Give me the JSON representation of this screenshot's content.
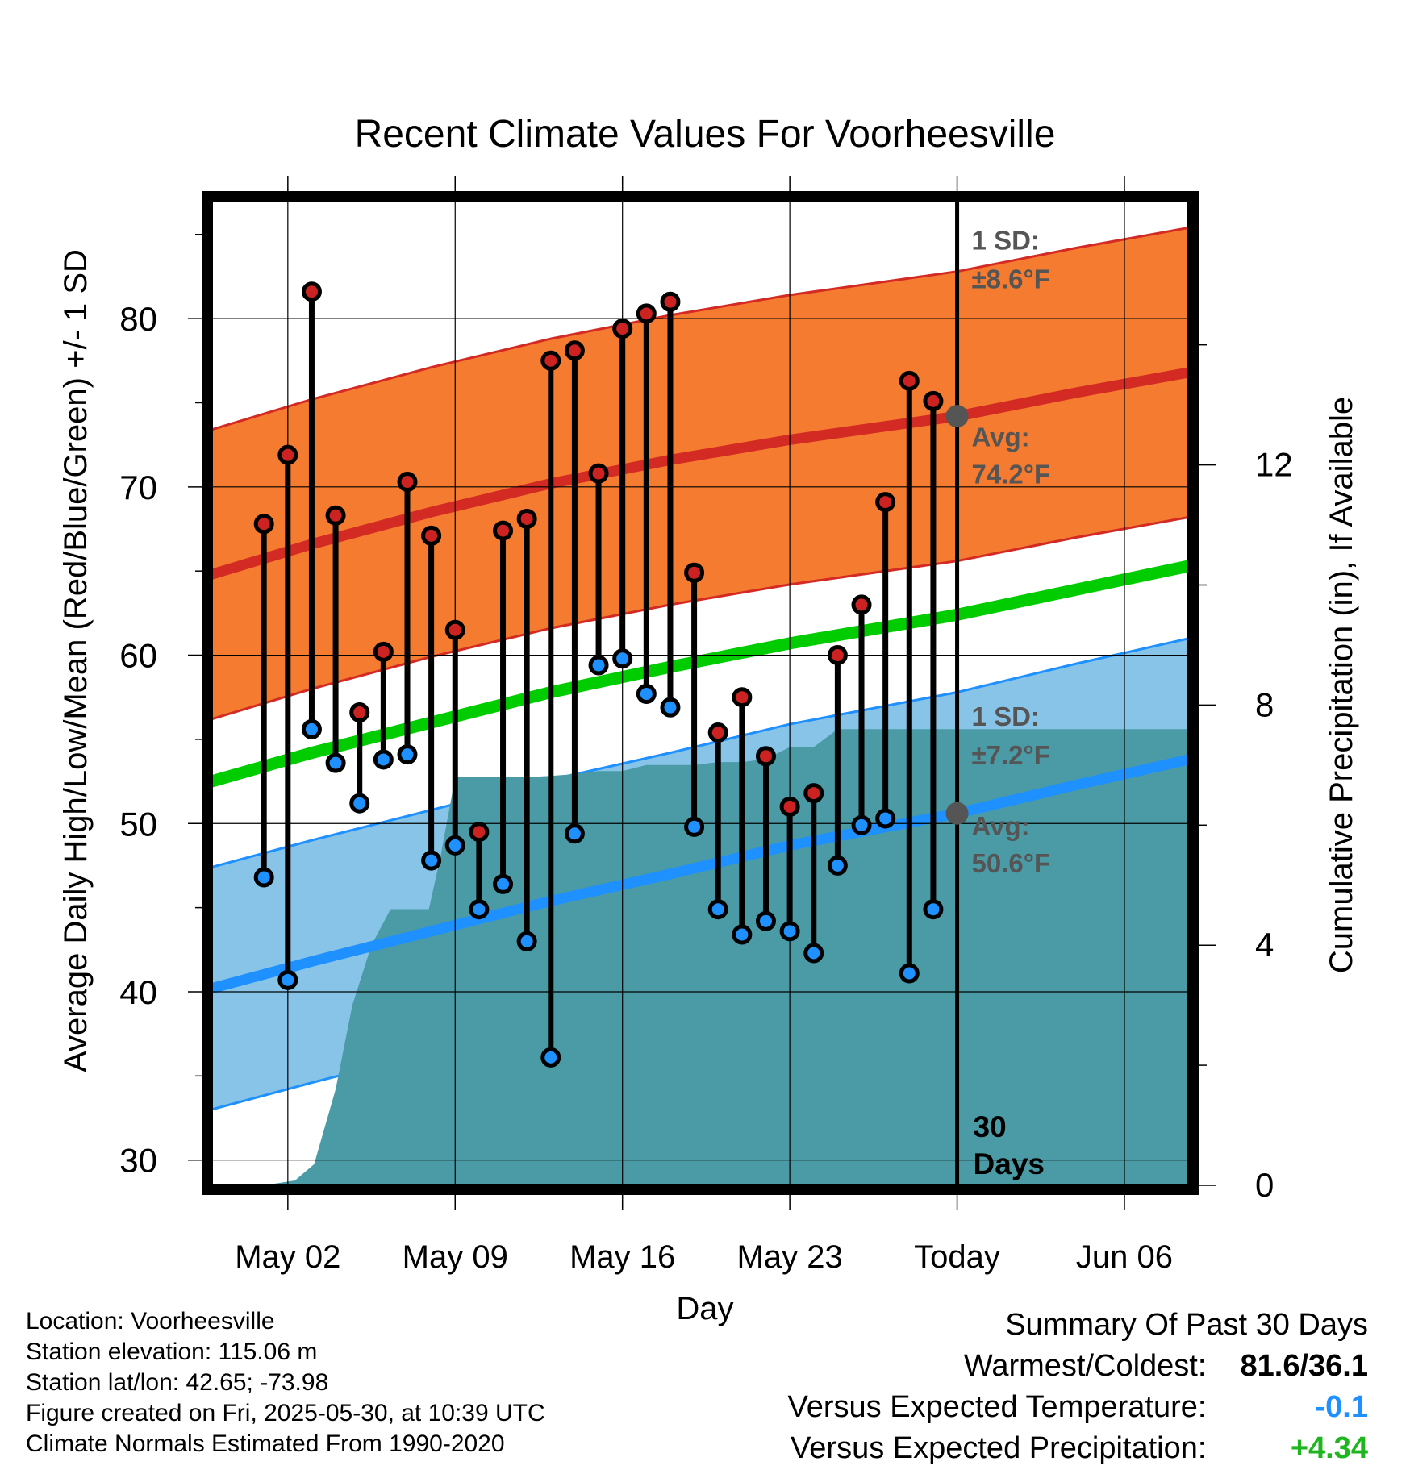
{
  "chart_data": {
    "type": "line",
    "title": "Recent Climate Values For Voorheesville",
    "xlabel": "Day",
    "ylabel": "Average Daily High/Low/Mean (Red/Blue/Green) +/- 1 SD",
    "y2label": "Cumulative Precipitation (in), If Available",
    "x_ticks": [
      {
        "day": 2,
        "label": "May 02"
      },
      {
        "day": 9,
        "label": "May 09"
      },
      {
        "day": 16,
        "label": "May 16"
      },
      {
        "day": 23,
        "label": "May 23"
      },
      {
        "day": 30,
        "label": "Today"
      },
      {
        "day": 37,
        "label": "Jun 06"
      }
    ],
    "xlim": [
      -1.2,
      39.7
    ],
    "ylim": [
      28.5,
      87
    ],
    "y_ticks": [
      30,
      40,
      50,
      60,
      70,
      80
    ],
    "y2lim": [
      0,
      16.4
    ],
    "y2_ticks": [
      0,
      4,
      8,
      12
    ],
    "today_day": 30,
    "today_marker_label": "30 Days",
    "normals": {
      "days": [
        -1.2,
        3,
        8,
        13,
        18,
        23,
        30,
        35,
        39.7
      ],
      "high_mean": [
        64.8,
        66.6,
        68.5,
        70.2,
        71.6,
        72.8,
        74.2,
        75.6,
        76.8
      ],
      "low_mean": [
        40.2,
        41.8,
        43.6,
        45.4,
        47.0,
        48.7,
        50.6,
        52.3,
        53.8
      ],
      "avg_mean": [
        52.5,
        54.2,
        56.0,
        57.8,
        59.3,
        60.7,
        62.4,
        63.9,
        65.3
      ],
      "high_sd": 8.6,
      "low_sd": 7.2
    },
    "series": [
      {
        "name": "High",
        "color": "#cc2222",
        "days": [
          1,
          2,
          3,
          4,
          5,
          6,
          7,
          8,
          9,
          10,
          11,
          12,
          13,
          14,
          15,
          16,
          17,
          18,
          19,
          20,
          21,
          22,
          23,
          24,
          25,
          26,
          27,
          28,
          29
        ],
        "values": [
          67.8,
          71.9,
          81.6,
          68.3,
          56.6,
          60.2,
          70.3,
          67.1,
          61.5,
          49.5,
          67.4,
          68.1,
          77.5,
          78.1,
          70.8,
          79.4,
          80.3,
          81.0,
          64.9,
          55.4,
          57.5,
          54.0,
          51.0,
          51.8,
          60.0,
          63.0,
          69.1,
          76.3,
          75.1
        ]
      },
      {
        "name": "Low",
        "color": "#1e90ff",
        "days": [
          1,
          2,
          3,
          4,
          5,
          6,
          7,
          8,
          9,
          10,
          11,
          12,
          13,
          14,
          15,
          16,
          17,
          18,
          19,
          20,
          21,
          22,
          23,
          24,
          25,
          26,
          27,
          28,
          29
        ],
        "values": [
          46.8,
          40.7,
          55.6,
          53.6,
          51.2,
          53.8,
          54.1,
          47.8,
          48.7,
          44.9,
          46.4,
          43.0,
          36.1,
          49.4,
          59.4,
          59.8,
          57.7,
          56.9,
          49.8,
          44.9,
          43.4,
          44.2,
          43.6,
          42.3,
          47.5,
          49.9,
          50.3,
          41.1,
          44.9
        ]
      },
      {
        "name": "Cumulative Precipitation",
        "color": "#4a9ba6",
        "days": [
          -1.2,
          0.3,
          1.0,
          2.3,
          3.1,
          4.0,
          4.7,
          5.5,
          6.3,
          6.8,
          7.3,
          7.9,
          8.4,
          9.0,
          10,
          11,
          12,
          13,
          14,
          15,
          16,
          17,
          18,
          19,
          20,
          21,
          22,
          23,
          24,
          25,
          30,
          39.7
        ],
        "values": [
          0,
          0,
          0,
          0.08,
          0.35,
          1.6,
          3.0,
          4.0,
          4.6,
          4.6,
          4.6,
          4.6,
          5.5,
          6.8,
          6.8,
          6.8,
          6.8,
          6.82,
          6.85,
          6.9,
          6.9,
          7.0,
          7.0,
          7.0,
          7.05,
          7.05,
          7.1,
          7.3,
          7.3,
          7.6,
          7.6,
          7.6
        ]
      }
    ],
    "annotations": {
      "high_sd_label": "1 SD:",
      "high_sd_value": "±8.6°F",
      "high_avg_label": "Avg:",
      "high_avg_value": "74.2°F",
      "low_sd_label": "1 SD:",
      "low_sd_value": "±7.2°F",
      "low_avg_label": "Avg:",
      "low_avg_value": "50.6°F"
    },
    "colors": {
      "high_band": "#f47b2f",
      "high_line": "#d42a24",
      "low_band": "#87c4e8",
      "low_line": "#1e90ff",
      "mean_line": "#00cc00",
      "precip": "#4a9ba6",
      "annotation": "#555555"
    }
  },
  "info": {
    "location": "Location: Voorheesville",
    "elevation": "Station elevation: 115.06 m",
    "latlon": "Station lat/lon: 42.65; -73.98",
    "created": "Figure created on Fri, 2025-05-30, at 10:39 UTC",
    "normals": "Climate Normals Estimated From 1990-2020"
  },
  "summary": {
    "title": "Summary Of Past 30 Days",
    "warmest_label": "Warmest/Coldest:",
    "warmest_value": "81.6/36.1",
    "temp_label": "Versus Expected Temperature:",
    "temp_value": "-0.1",
    "temp_color": "#1e90ff",
    "precip_label": "Versus Expected Precipitation:",
    "precip_value": "+4.34",
    "precip_color": "#1fb51f"
  }
}
